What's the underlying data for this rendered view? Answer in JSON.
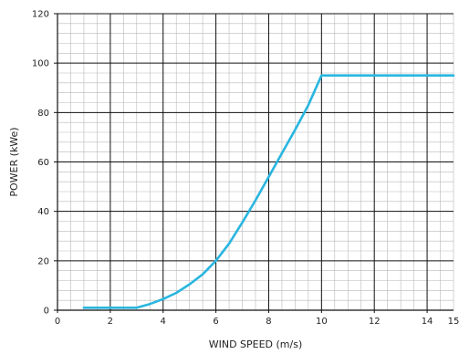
{
  "chart_data": {
    "type": "line",
    "title": "",
    "xlabel": "WIND SPEED (m/s)",
    "ylabel": "POWER (kWe)",
    "xlim": [
      0,
      15
    ],
    "ylim": [
      0,
      120
    ],
    "x_ticks": [
      0,
      2,
      4,
      6,
      8,
      10,
      12,
      14
    ],
    "x_tick_labels": [
      "0",
      "2",
      "4",
      "6",
      "8",
      "10",
      "12",
      "14"
    ],
    "x_axis_end_label": "15",
    "y_ticks": [
      0,
      20,
      40,
      60,
      80,
      100,
      120
    ],
    "y_tick_labels": [
      "0",
      "20",
      "40",
      "60",
      "80",
      "100",
      "120"
    ],
    "grid": true,
    "minor_grid": true,
    "legend": "none",
    "series": [
      {
        "color": "#29b6e0",
        "x": [
          1,
          2,
          3,
          3.5,
          4,
          4.5,
          5,
          5.5,
          6,
          6.5,
          7,
          7.5,
          8,
          8.5,
          9,
          9.5,
          10,
          11,
          12,
          13,
          14,
          15
        ],
        "y": [
          1,
          1,
          1,
          2.5,
          4.5,
          7,
          10.5,
          14.5,
          20,
          27,
          35.5,
          44.5,
          54,
          63.5,
          73,
          83,
          95,
          95,
          95,
          95,
          95,
          95
        ]
      }
    ]
  }
}
